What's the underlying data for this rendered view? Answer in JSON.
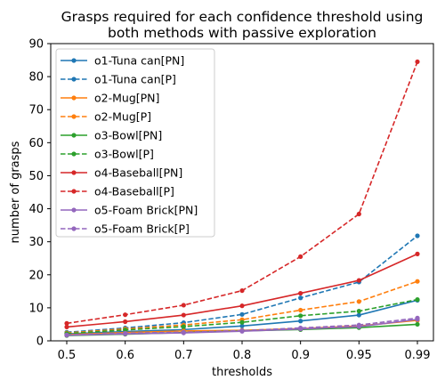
{
  "chart_data": {
    "type": "line",
    "title": "Grasps required for each confidence threshold using both methods with passive exploration",
    "title_lines": [
      "Grasps required for each confidence threshold using",
      "both methods with passive exploration"
    ],
    "xlabel": "thresholds",
    "ylabel": "number of grasps",
    "categories": [
      "0.5",
      "0.6",
      "0.7",
      "0.8",
      "0.9",
      "0.95",
      "0.99"
    ],
    "ylim": [
      0,
      90
    ],
    "yticks": [
      0,
      10,
      20,
      30,
      40,
      50,
      60,
      70,
      80,
      90
    ],
    "grid": false,
    "legend_position": "upper-left",
    "series": [
      {
        "name": "o1-Tuna can[PN]",
        "color": "#1f77b4",
        "style": "solid",
        "values": [
          2.1,
          2.8,
          3.4,
          4.5,
          6.0,
          7.8,
          12.3
        ]
      },
      {
        "name": "o1-Tuna can[P]",
        "color": "#1f77b4",
        "style": "dashed",
        "values": [
          2.6,
          3.9,
          5.5,
          8.0,
          13.0,
          17.8,
          31.8
        ]
      },
      {
        "name": "o2-Mug[PN]",
        "color": "#ff7f0e",
        "style": "solid",
        "values": [
          1.9,
          2.5,
          3.0,
          3.2,
          3.7,
          4.5,
          6.2
        ]
      },
      {
        "name": "o2-Mug[P]",
        "color": "#ff7f0e",
        "style": "dashed",
        "values": [
          2.4,
          3.6,
          4.8,
          6.4,
          9.3,
          11.9,
          18.0
        ]
      },
      {
        "name": "o3-Bowl[PN]",
        "color": "#2ca02c",
        "style": "solid",
        "values": [
          1.6,
          2.0,
          2.5,
          3.0,
          3.4,
          4.0,
          5.0
        ]
      },
      {
        "name": "o3-Bowl[P]",
        "color": "#2ca02c",
        "style": "dashed",
        "values": [
          2.2,
          3.3,
          4.3,
          5.6,
          7.6,
          9.0,
          12.5
        ]
      },
      {
        "name": "o4-Baseball[PN]",
        "color": "#d62728",
        "style": "solid",
        "values": [
          4.2,
          5.8,
          7.8,
          10.6,
          14.4,
          18.3,
          26.3
        ]
      },
      {
        "name": "o4-Baseball[P]",
        "color": "#d62728",
        "style": "dashed",
        "values": [
          5.3,
          7.9,
          10.8,
          15.2,
          25.5,
          38.4,
          84.5
        ]
      },
      {
        "name": "o5-Foam Brick[PN]",
        "color": "#9467bd",
        "style": "solid",
        "values": [
          1.7,
          2.1,
          2.4,
          2.9,
          3.6,
          4.3,
          6.5
        ]
      },
      {
        "name": "o5-Foam Brick[P]",
        "color": "#9467bd",
        "style": "dashed",
        "values": [
          1.8,
          2.3,
          2.6,
          3.1,
          3.9,
          4.8,
          6.9
        ]
      }
    ]
  }
}
